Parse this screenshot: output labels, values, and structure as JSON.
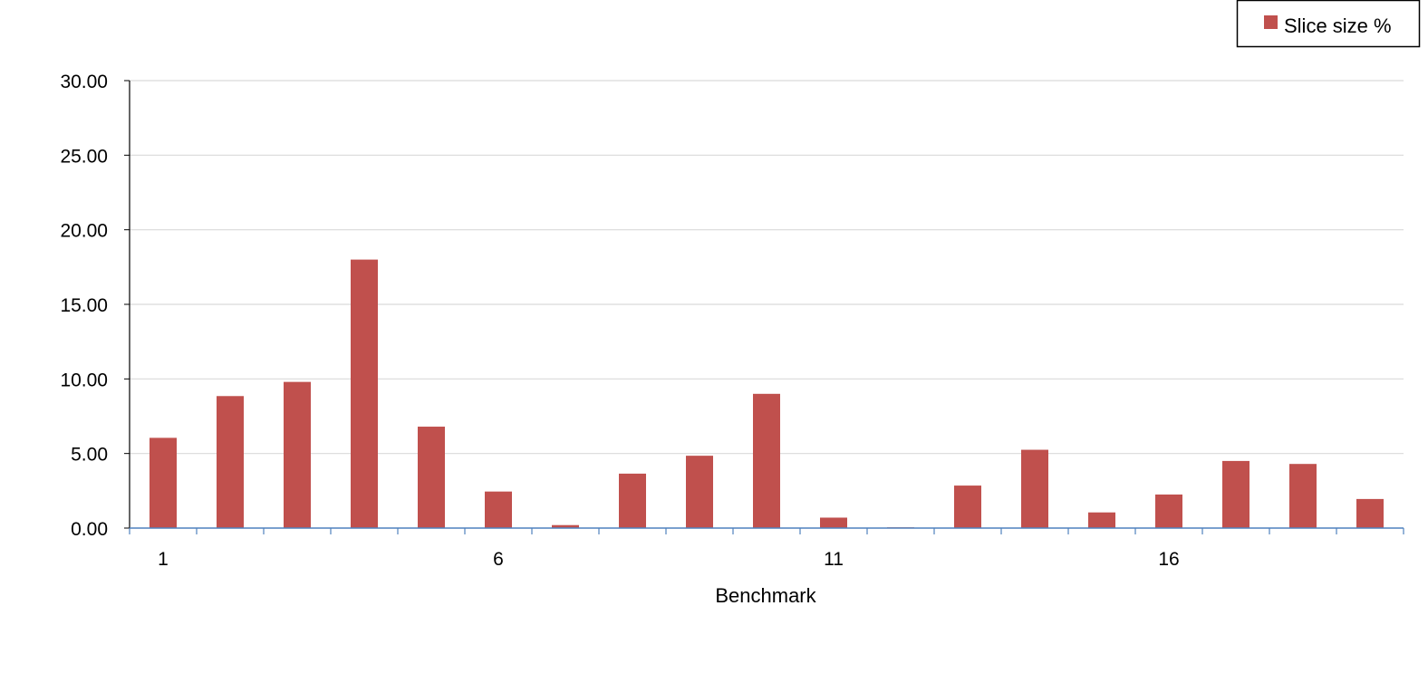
{
  "chart_data": {
    "type": "bar",
    "title": "",
    "xlabel": "Benchmark",
    "ylabel": "",
    "categories": [
      "1",
      "2",
      "3",
      "4",
      "5",
      "6",
      "7",
      "8",
      "9",
      "10",
      "11",
      "12",
      "13",
      "14",
      "15",
      "16",
      "17",
      "18",
      "19"
    ],
    "x_tick_labels_shown": [
      "1",
      "6",
      "11",
      "16"
    ],
    "series": [
      {
        "name": "Slice size %",
        "color": "#c0504d",
        "values": [
          6.05,
          8.85,
          9.8,
          18.0,
          6.8,
          2.45,
          0.2,
          3.65,
          4.85,
          9.0,
          0.7,
          0.05,
          2.85,
          5.25,
          1.05,
          2.25,
          4.5,
          4.3,
          1.95
        ]
      }
    ],
    "ylim": [
      0,
      30
    ],
    "y_ticks": [
      0,
      5,
      10,
      15,
      20,
      25,
      30
    ],
    "y_tick_labels": [
      "0.00",
      "5.00",
      "10.00",
      "15.00",
      "20.00",
      "25.00",
      "30.00"
    ],
    "grid": true,
    "legend": {
      "position": "top-right",
      "label": "Slice size %"
    },
    "colors": {
      "bar": "#c0504d",
      "gridline": "#d9d9d9",
      "x_axis": "#4f81bd",
      "y_axis": "#000000"
    }
  }
}
